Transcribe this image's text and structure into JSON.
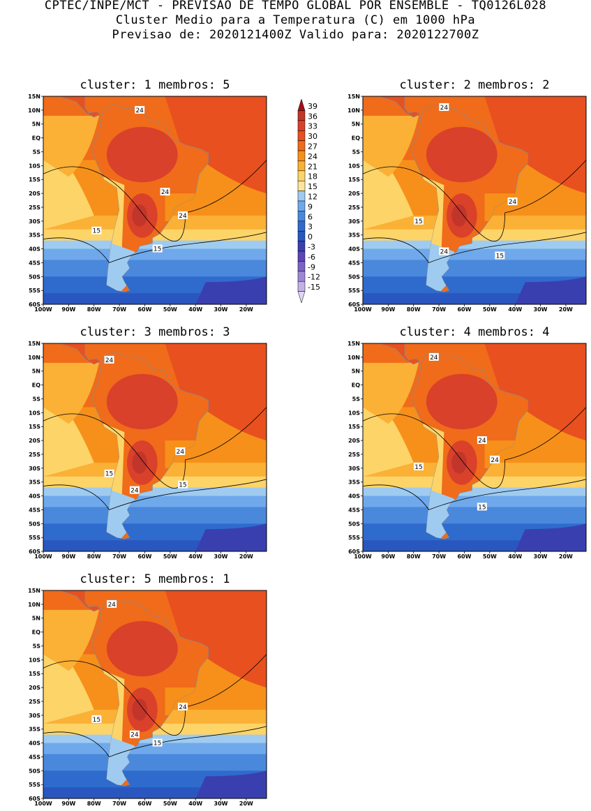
{
  "header": {
    "line1": "CPTEC/INPE/MCT - PREVISAO DE TEMPO GLOBAL POR ENSEMBLE - TQ0126L028",
    "line2": "Cluster Medio para a Temperatura (C) em 1000 hPa",
    "line3": "Previsao de: 2020121400Z   Valido para: 2020122700Z"
  },
  "axes": {
    "lat_labels": [
      "15N",
      "10N",
      "5N",
      "EQ",
      "5S",
      "10S",
      "15S",
      "20S",
      "25S",
      "30S",
      "35S",
      "40S",
      "45S",
      "50S",
      "55S",
      "60S"
    ],
    "lon_labels": [
      "100W",
      "90W",
      "80W",
      "70W",
      "60W",
      "50W",
      "40W",
      "30W",
      "20W"
    ]
  },
  "colorbar": {
    "labels": [
      "39",
      "36",
      "33",
      "30",
      "27",
      "24",
      "21",
      "18",
      "15",
      "12",
      "9",
      "6",
      "3",
      "0",
      "-3",
      "-6",
      "-9",
      "-12",
      "-15"
    ],
    "colors": [
      "#a50f15",
      "#c2352a",
      "#d9412b",
      "#e8501f",
      "#f06b1a",
      "#f6901a",
      "#fbb036",
      "#fdd468",
      "#fde59a",
      "#9fcbf0",
      "#6fa9ec",
      "#4a88dc",
      "#2f6bcc",
      "#2a57bf",
      "#3a3fb0",
      "#5c45b8",
      "#7b63c4",
      "#9e88d6",
      "#c2b2e6",
      "#ded6f2"
    ]
  },
  "panels": [
    {
      "title": "cluster: 1   membros: 5",
      "labels": [
        {
          "text": "24",
          "lon": -62,
          "lat": 10
        },
        {
          "text": "24",
          "lon": -52,
          "lat": -19.5
        },
        {
          "text": "24",
          "lon": -45,
          "lat": -28
        },
        {
          "text": "15",
          "lon": -79,
          "lat": -33.5
        },
        {
          "text": "15",
          "lon": -55,
          "lat": -40
        }
      ]
    },
    {
      "title": "cluster: 2   membros: 2",
      "labels": [
        {
          "text": "24",
          "lon": -68,
          "lat": 11
        },
        {
          "text": "24",
          "lon": -41,
          "lat": -23
        },
        {
          "text": "15",
          "lon": -78,
          "lat": -30
        },
        {
          "text": "24",
          "lon": -68,
          "lat": -41
        },
        {
          "text": "15",
          "lon": -46,
          "lat": -42.5
        }
      ]
    },
    {
      "title": "cluster: 3   membros: 3",
      "labels": [
        {
          "text": "24",
          "lon": -74,
          "lat": 9
        },
        {
          "text": "24",
          "lon": -46,
          "lat": -24
        },
        {
          "text": "15",
          "lon": -74,
          "lat": -32
        },
        {
          "text": "24",
          "lon": -64,
          "lat": -38
        },
        {
          "text": "15",
          "lon": -45,
          "lat": -36
        }
      ]
    },
    {
      "title": "cluster: 4   membros: 4",
      "labels": [
        {
          "text": "24",
          "lon": -72,
          "lat": 10
        },
        {
          "text": "24",
          "lon": -53,
          "lat": -20
        },
        {
          "text": "24",
          "lon": -48,
          "lat": -27
        },
        {
          "text": "15",
          "lon": -78,
          "lat": -29.5
        },
        {
          "text": "15",
          "lon": -53,
          "lat": -44
        }
      ]
    },
    {
      "title": "cluster: 5   membros: 1",
      "labels": [
        {
          "text": "24",
          "lon": -73,
          "lat": 10
        },
        {
          "text": "24",
          "lon": -45,
          "lat": -27
        },
        {
          "text": "15",
          "lon": -79,
          "lat": -31.5
        },
        {
          "text": "24",
          "lon": -64,
          "lat": -37
        },
        {
          "text": "15",
          "lon": -55,
          "lat": -40
        }
      ]
    }
  ]
}
